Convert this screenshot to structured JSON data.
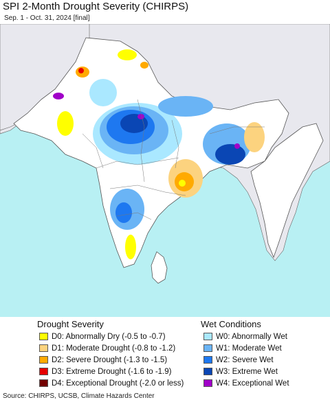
{
  "title": "SPI 2-Month Drought Severity (CHIRPS)",
  "subtitle": "Sep. 1 - Oct. 31, 2024 [final]",
  "map": {
    "region": "South Asia",
    "colors": {
      "water": "#b8f0f3",
      "land_outside": "#e8e8ee",
      "land_normal": "#ffffff",
      "boundary": "#555555"
    }
  },
  "legend": {
    "drought": {
      "title": "Drought Severity",
      "items": [
        {
          "label": "D0: Abnormally Dry (-0.5 to -0.7)",
          "color": "#ffff00"
        },
        {
          "label": "D1: Moderate Drought (-0.8 to -1.2)",
          "color": "#fcd37f"
        },
        {
          "label": "D2: Severe Drought (-1.3 to -1.5)",
          "color": "#ffaa00"
        },
        {
          "label": "D3: Extreme Drought (-1.6 to -1.9)",
          "color": "#e60000"
        },
        {
          "label": "D4: Exceptional Drought (-2.0 or less)",
          "color": "#730000"
        }
      ]
    },
    "wet": {
      "title": "Wet Conditions",
      "items": [
        {
          "label": "W0: Abnormally Wet",
          "color": "#aae8ff"
        },
        {
          "label": "W1: Moderate Wet",
          "color": "#6ab4f5"
        },
        {
          "label": "W2: Severe Wet",
          "color": "#1e78f0"
        },
        {
          "label": "W3: Extreme Wet",
          "color": "#0a46b4"
        },
        {
          "label": "W4: Exceptional Wet",
          "color": "#a000c8"
        }
      ]
    }
  },
  "source": "Source: CHIRPS, UCSB, Climate Hazards Center"
}
